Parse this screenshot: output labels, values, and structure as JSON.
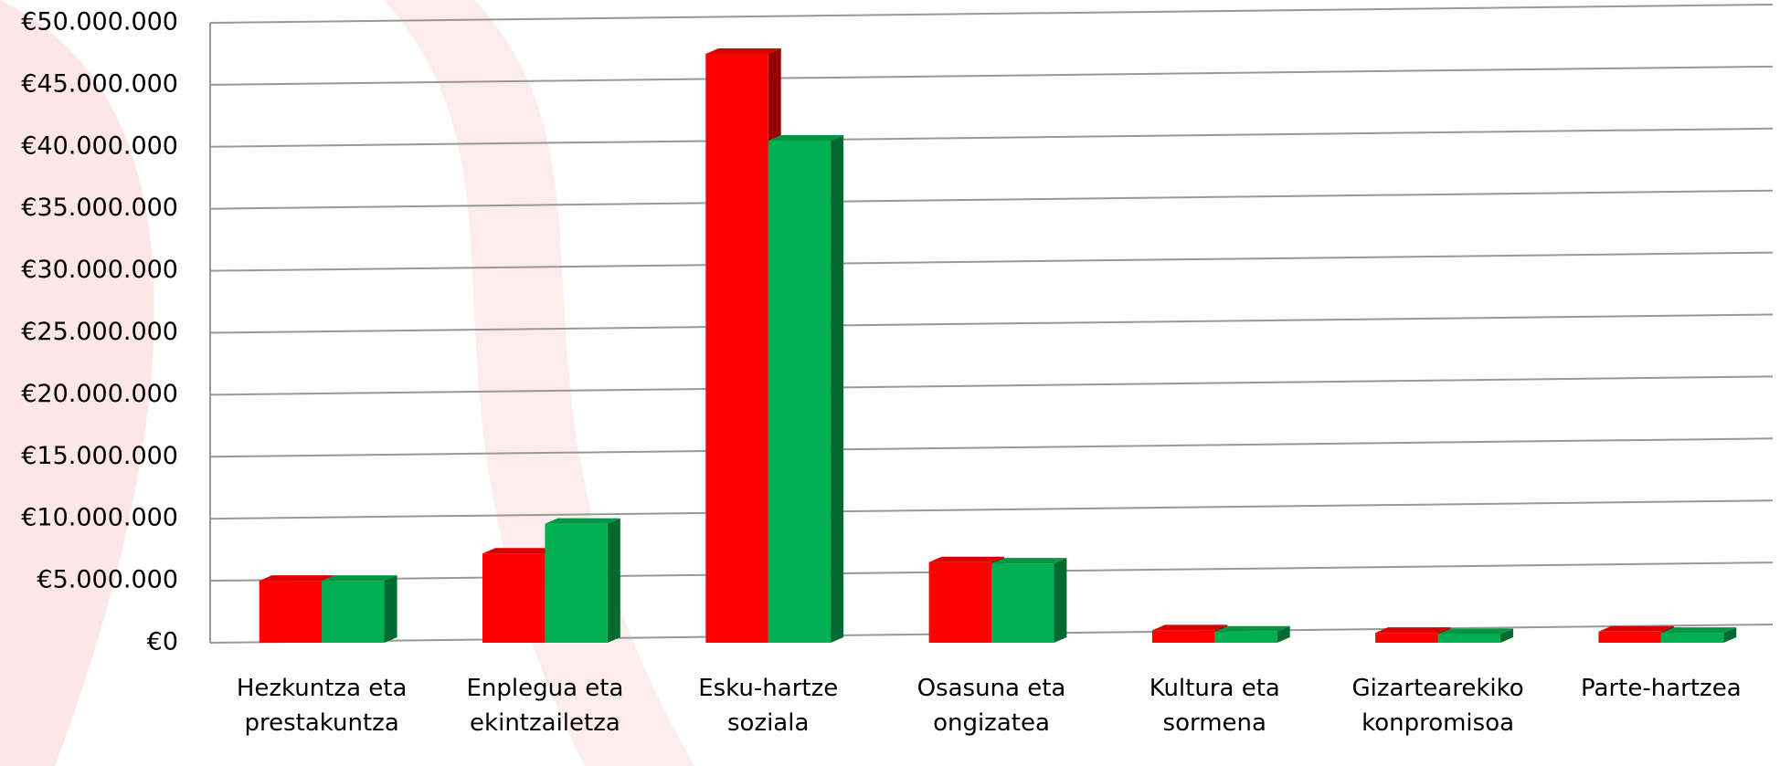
{
  "chart_data": {
    "type": "bar3d",
    "categories": [
      "Hezkuntza eta prestakuntza",
      "Enplegua eta ekintzailetza",
      "Esku-hartze soziala",
      "Osasuna eta ongizatea",
      "Kultura eta sormena",
      "Gizartearekiko konpromisoa",
      "Parte-hartzea"
    ],
    "series": [
      {
        "color": "#ff0000",
        "values": [
          5000000,
          7200000,
          47500000,
          6500000,
          1000000,
          800000,
          900000
        ]
      },
      {
        "color": "#00b050",
        "values": [
          5000000,
          9600000,
          40500000,
          6400000,
          900000,
          700000,
          800000
        ]
      }
    ],
    "ylim": [
      0,
      50000000
    ],
    "yticks": [
      {
        "value": 0,
        "label": "€0"
      },
      {
        "value": 5000000,
        "label": "€5.000.000"
      },
      {
        "value": 10000000,
        "label": "€10.000.000"
      },
      {
        "value": 15000000,
        "label": "€15.000.000"
      },
      {
        "value": 20000000,
        "label": "€20.000.000"
      },
      {
        "value": 25000000,
        "label": "€25.000.000"
      },
      {
        "value": 30000000,
        "label": "€30.000.000"
      },
      {
        "value": 35000000,
        "label": "€35.000.000"
      },
      {
        "value": 40000000,
        "label": "€40.000.000"
      },
      {
        "value": 45000000,
        "label": "€45.000.000"
      },
      {
        "value": 50000000,
        "label": "€50.000.000"
      }
    ],
    "grid": true
  }
}
